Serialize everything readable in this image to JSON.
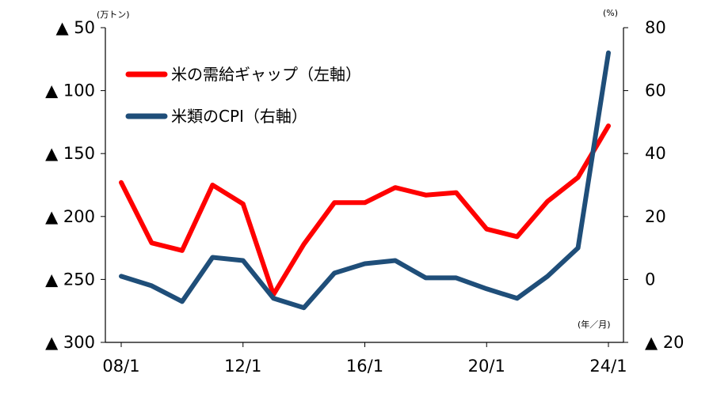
{
  "chart_data": {
    "type": "line",
    "x": [
      "08/1",
      "09/1",
      "10/1",
      "11/1",
      "12/1",
      "13/1",
      "14/1",
      "15/1",
      "16/1",
      "17/1",
      "18/1",
      "19/1",
      "20/1",
      "21/1",
      "22/1",
      "23/1",
      "24/1"
    ],
    "x_tick_labels": [
      "08/1",
      "12/1",
      "16/1",
      "20/1",
      "24/1"
    ],
    "left_axis": {
      "unit": "(万トン)",
      "ylim": [
        -300,
        -50
      ],
      "ticks": [
        -50,
        -100,
        -150,
        -200,
        -250,
        -300
      ],
      "tick_labels": [
        "▲ 50",
        "▲ 100",
        "▲ 150",
        "▲ 200",
        "▲ 250",
        "▲ 300"
      ]
    },
    "right_axis": {
      "unit": "(%)",
      "ylim": [
        -20,
        80
      ],
      "ticks": [
        80,
        60,
        40,
        20,
        0,
        -20
      ],
      "tick_labels": [
        "80",
        "60",
        "40",
        "20",
        "0",
        "▲ 20"
      ]
    },
    "x_unit": "(年／月)",
    "grid": false,
    "legend_position": "top-left",
    "series": [
      {
        "name": "米の需給ギャップ（左軸）",
        "axis": "left",
        "color": "#ff0000",
        "values": [
          -173,
          -221,
          -227,
          -175,
          -190,
          -262,
          -222,
          -189,
          -189,
          -177,
          -183,
          -181,
          -210,
          -216,
          -188,
          -169,
          -128
        ]
      },
      {
        "name": "米類のCPI（右軸）",
        "axis": "right",
        "color": "#1f4e79",
        "values": [
          1,
          -2,
          -7,
          7,
          6,
          -6,
          -9,
          2,
          5,
          6,
          0.5,
          0.5,
          -3,
          -6,
          1,
          10,
          72
        ]
      }
    ]
  }
}
